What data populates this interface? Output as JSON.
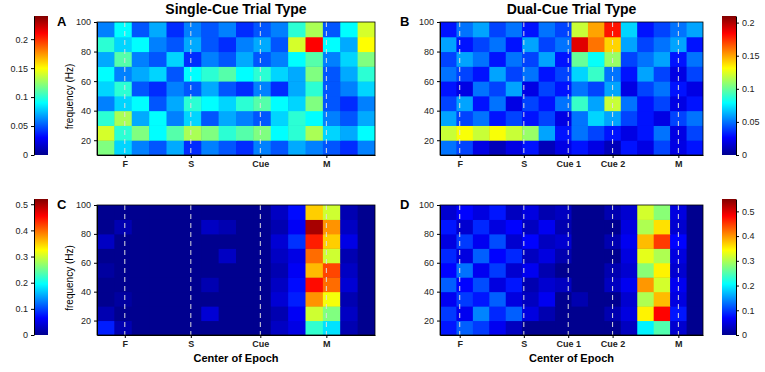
{
  "chart_data": [
    {
      "type": "heatmap",
      "panel": "A",
      "title": "Single-Cue Trial Type",
      "y_label": "frequency (Hz)",
      "xlim": [
        0,
        16
      ],
      "ylim": [
        10,
        100
      ],
      "xticks": [
        {
          "value": 1.6,
          "label": "F"
        },
        {
          "value": 5.4,
          "label": "S"
        },
        {
          "value": 9.4,
          "label": "Cue"
        },
        {
          "value": 13.2,
          "label": "M"
        }
      ],
      "yticks": [
        20,
        40,
        60,
        80,
        100
      ],
      "grid": "x",
      "x_bins": [
        0,
        1,
        2,
        3,
        4,
        5,
        6,
        7,
        8,
        9,
        10,
        11,
        12,
        13,
        14,
        15,
        16
      ],
      "y_bins": [
        10,
        20,
        30,
        40,
        50,
        60,
        70,
        80,
        90,
        100
      ],
      "cells": [
        [
          0.12,
          0.08,
          0.06,
          0.05,
          0.07,
          0.04,
          0.06,
          0.05,
          0.04,
          0.06,
          0.05,
          0.07,
          0.06,
          0.05,
          0.04,
          0.06
        ],
        [
          0.14,
          0.1,
          0.12,
          0.09,
          0.11,
          0.13,
          0.12,
          0.1,
          0.11,
          0.12,
          0.09,
          0.1,
          0.13,
          0.08,
          0.07,
          0.09
        ],
        [
          0.1,
          0.13,
          0.07,
          0.09,
          0.06,
          0.08,
          0.05,
          0.07,
          0.06,
          0.05,
          0.08,
          0.1,
          0.09,
          0.06,
          0.05,
          0.07
        ],
        [
          0.06,
          0.08,
          0.09,
          0.05,
          0.07,
          0.1,
          0.09,
          0.08,
          0.1,
          0.11,
          0.09,
          0.08,
          0.12,
          0.05,
          0.04,
          0.06
        ],
        [
          0.08,
          0.1,
          0.05,
          0.04,
          0.06,
          0.05,
          0.07,
          0.05,
          0.04,
          0.06,
          0.04,
          0.07,
          0.1,
          0.05,
          0.06,
          0.08
        ],
        [
          0.09,
          0.06,
          0.07,
          0.08,
          0.05,
          0.09,
          0.1,
          0.11,
          0.09,
          0.1,
          0.08,
          0.07,
          0.12,
          0.05,
          0.07,
          0.1
        ],
        [
          0.07,
          0.11,
          0.06,
          0.05,
          0.08,
          0.04,
          0.06,
          0.05,
          0.07,
          0.05,
          0.06,
          0.09,
          0.11,
          0.06,
          0.08,
          0.12
        ],
        [
          0.1,
          0.08,
          0.09,
          0.06,
          0.05,
          0.07,
          0.05,
          0.04,
          0.06,
          0.07,
          0.05,
          0.14,
          0.21,
          0.09,
          0.07,
          0.15
        ],
        [
          0.06,
          0.09,
          0.05,
          0.07,
          0.04,
          0.06,
          0.05,
          0.06,
          0.04,
          0.05,
          0.06,
          0.1,
          0.13,
          0.05,
          0.09,
          0.14
        ]
      ],
      "colorbar": {
        "range": [
          0,
          0.24
        ],
        "ticks": [
          0,
          0.05,
          0.1,
          0.15,
          0.2
        ]
      }
    },
    {
      "type": "heatmap",
      "panel": "B",
      "title": "Dual-Cue Trial Type",
      "xlim": [
        0,
        16
      ],
      "ylim": [
        10,
        100
      ],
      "xticks": [
        {
          "value": 1.2,
          "label": "F"
        },
        {
          "value": 5.1,
          "label": "S"
        },
        {
          "value": 7.8,
          "label": "Cue 1"
        },
        {
          "value": 10.5,
          "label": "Cue 2"
        },
        {
          "value": 14.5,
          "label": "M"
        }
      ],
      "yticks": [
        20,
        40,
        60,
        80,
        100
      ],
      "grid": "x",
      "x_bins": [
        0,
        1,
        2,
        3,
        4,
        5,
        6,
        7,
        8,
        9,
        10,
        11,
        12,
        13,
        14,
        15,
        16
      ],
      "y_bins": [
        10,
        20,
        30,
        40,
        50,
        60,
        70,
        80,
        90,
        100
      ],
      "cells": [
        [
          0.05,
          0.04,
          0.02,
          0.01,
          0.02,
          0.03,
          0.01,
          0.02,
          0.03,
          0.02,
          0.01,
          0.03,
          0.02,
          0.04,
          0.02,
          0.03
        ],
        [
          0.12,
          0.13,
          0.12,
          0.13,
          0.12,
          0.11,
          0.06,
          0.03,
          0.05,
          0.04,
          0.03,
          0.02,
          0.03,
          0.05,
          0.02,
          0.04
        ],
        [
          0.06,
          0.04,
          0.05,
          0.03,
          0.04,
          0.03,
          0.04,
          0.02,
          0.05,
          0.07,
          0.06,
          0.04,
          0.03,
          0.02,
          0.04,
          0.05
        ],
        [
          0.04,
          0.06,
          0.03,
          0.05,
          0.02,
          0.04,
          0.03,
          0.05,
          0.09,
          0.06,
          0.12,
          0.05,
          0.03,
          0.04,
          0.02,
          0.03
        ],
        [
          0.03,
          0.02,
          0.05,
          0.04,
          0.06,
          0.02,
          0.04,
          0.03,
          0.05,
          0.04,
          0.06,
          0.02,
          0.04,
          0.05,
          0.03,
          0.02
        ],
        [
          0.05,
          0.04,
          0.03,
          0.06,
          0.04,
          0.05,
          0.03,
          0.04,
          0.07,
          0.09,
          0.05,
          0.03,
          0.06,
          0.04,
          0.02,
          0.04
        ],
        [
          0.04,
          0.06,
          0.05,
          0.03,
          0.05,
          0.04,
          0.06,
          0.03,
          0.1,
          0.08,
          0.11,
          0.04,
          0.05,
          0.06,
          0.03,
          0.05
        ],
        [
          0.06,
          0.03,
          0.04,
          0.05,
          0.03,
          0.06,
          0.04,
          0.05,
          0.19,
          0.16,
          0.14,
          0.06,
          0.04,
          0.05,
          0.06,
          0.03
        ],
        [
          0.03,
          0.05,
          0.06,
          0.04,
          0.05,
          0.03,
          0.05,
          0.04,
          0.12,
          0.15,
          0.18,
          0.07,
          0.03,
          0.04,
          0.05,
          0.06
        ]
      ],
      "colorbar": {
        "range": [
          0,
          0.21
        ],
        "ticks": [
          0,
          0.05,
          0.1,
          0.15,
          0.2
        ]
      }
    },
    {
      "type": "heatmap",
      "panel": "C",
      "x_label": "Center of Epoch",
      "y_label": "frequency (Hz)",
      "xlim": [
        0,
        16
      ],
      "ylim": [
        10,
        100
      ],
      "xticks": [
        {
          "value": 1.6,
          "label": "F"
        },
        {
          "value": 5.4,
          "label": "S"
        },
        {
          "value": 9.4,
          "label": "Cue"
        },
        {
          "value": 13.2,
          "label": "M"
        }
      ],
      "yticks": [
        20,
        40,
        60,
        80,
        100
      ],
      "grid": "x",
      "x_bins": [
        0,
        1,
        2,
        3,
        4,
        5,
        6,
        7,
        8,
        9,
        10,
        11,
        12,
        13,
        14,
        15,
        16
      ],
      "y_bins": [
        10,
        20,
        30,
        40,
        50,
        60,
        70,
        80,
        90,
        100
      ],
      "cells": [
        [
          0.08,
          0.02,
          0,
          0,
          0,
          0,
          0,
          0,
          0,
          0,
          0.03,
          0.05,
          0.22,
          0.18,
          0.02,
          0
        ],
        [
          0.02,
          0,
          0,
          0,
          0,
          0,
          0.04,
          0,
          0,
          0,
          0.02,
          0.06,
          0.3,
          0.26,
          0.03,
          0
        ],
        [
          0,
          0.01,
          0,
          0,
          0,
          0,
          0,
          0,
          0,
          0,
          0.04,
          0.08,
          0.38,
          0.32,
          0.02,
          0
        ],
        [
          0,
          0,
          0,
          0,
          0,
          0,
          0.02,
          0,
          0,
          0,
          0.03,
          0.07,
          0.45,
          0.4,
          0.04,
          0
        ],
        [
          0.01,
          0,
          0,
          0,
          0,
          0,
          0,
          0,
          0,
          0,
          0.02,
          0.06,
          0.36,
          0.42,
          0.03,
          0
        ],
        [
          0,
          0,
          0,
          0,
          0,
          0,
          0,
          0.03,
          0,
          0,
          0.03,
          0.05,
          0.4,
          0.3,
          0.02,
          0
        ],
        [
          0.03,
          0,
          0,
          0,
          0,
          0,
          0,
          0,
          0,
          0,
          0.04,
          0.09,
          0.44,
          0.35,
          0.05,
          0
        ],
        [
          0,
          0.02,
          0,
          0,
          0,
          0,
          0.03,
          0.02,
          0,
          0,
          0.02,
          0.06,
          0.5,
          0.38,
          0.03,
          0
        ],
        [
          0,
          0,
          0,
          0,
          0,
          0,
          0,
          0,
          0,
          0,
          0.03,
          0.07,
          0.35,
          0.3,
          0.02,
          0
        ]
      ],
      "colorbar": {
        "range": [
          0,
          0.52
        ],
        "ticks": [
          0,
          0.1,
          0.2,
          0.3,
          0.4,
          0.5
        ]
      }
    },
    {
      "type": "heatmap",
      "panel": "D",
      "x_label": "Center of Epoch",
      "xlim": [
        0,
        16
      ],
      "ylim": [
        10,
        100
      ],
      "xticks": [
        {
          "value": 1.2,
          "label": "F"
        },
        {
          "value": 5.1,
          "label": "S"
        },
        {
          "value": 7.8,
          "label": "Cue 1"
        },
        {
          "value": 10.5,
          "label": "Cue 2"
        },
        {
          "value": 14.5,
          "label": "M"
        }
      ],
      "yticks": [
        20,
        40,
        60,
        80,
        100
      ],
      "grid": "x",
      "x_bins": [
        0,
        1,
        2,
        3,
        4,
        5,
        6,
        7,
        8,
        9,
        10,
        11,
        12,
        13,
        14,
        15,
        16
      ],
      "y_bins": [
        10,
        20,
        30,
        40,
        50,
        60,
        70,
        80,
        90,
        100
      ],
      "cells": [
        [
          0.08,
          0.12,
          0.1,
          0.06,
          0.03,
          0,
          0,
          0,
          0,
          0,
          0,
          0.03,
          0.2,
          0.25,
          0.04,
          0
        ],
        [
          0.1,
          0.06,
          0.14,
          0.09,
          0.12,
          0.05,
          0.02,
          0,
          0,
          0,
          0.02,
          0.05,
          0.35,
          0.48,
          0.08,
          0
        ],
        [
          0.06,
          0.1,
          0.08,
          0.12,
          0.05,
          0.03,
          0.06,
          0,
          0.02,
          0,
          0,
          0.04,
          0.3,
          0.38,
          0.05,
          0
        ],
        [
          0.12,
          0.07,
          0.11,
          0.05,
          0.08,
          0.02,
          0.04,
          0.03,
          0,
          0,
          0.03,
          0.06,
          0.4,
          0.32,
          0.06,
          0
        ],
        [
          0.07,
          0.13,
          0.06,
          0.1,
          0.04,
          0.06,
          0.02,
          0,
          0,
          0,
          0.02,
          0.04,
          0.28,
          0.35,
          0.04,
          0
        ],
        [
          0.09,
          0.05,
          0.12,
          0.07,
          0.09,
          0.03,
          0.05,
          0.02,
          0,
          0,
          0,
          0.05,
          0.33,
          0.3,
          0.05,
          0
        ],
        [
          0.05,
          0.1,
          0.06,
          0.11,
          0.04,
          0.07,
          0.03,
          0.04,
          0,
          0,
          0.02,
          0.06,
          0.38,
          0.45,
          0.07,
          0
        ],
        [
          0.08,
          0.04,
          0.09,
          0.05,
          0.07,
          0.03,
          0.06,
          0.02,
          0,
          0,
          0,
          0.05,
          0.3,
          0.36,
          0.04,
          0
        ],
        [
          0.04,
          0.07,
          0.05,
          0.08,
          0.03,
          0.05,
          0.02,
          0.03,
          0,
          0,
          0.02,
          0.04,
          0.32,
          0.28,
          0.05,
          0
        ]
      ],
      "colorbar": {
        "range": [
          0,
          0.55
        ],
        "ticks": [
          0,
          0.1,
          0.2,
          0.3,
          0.4,
          0.5
        ]
      }
    }
  ]
}
